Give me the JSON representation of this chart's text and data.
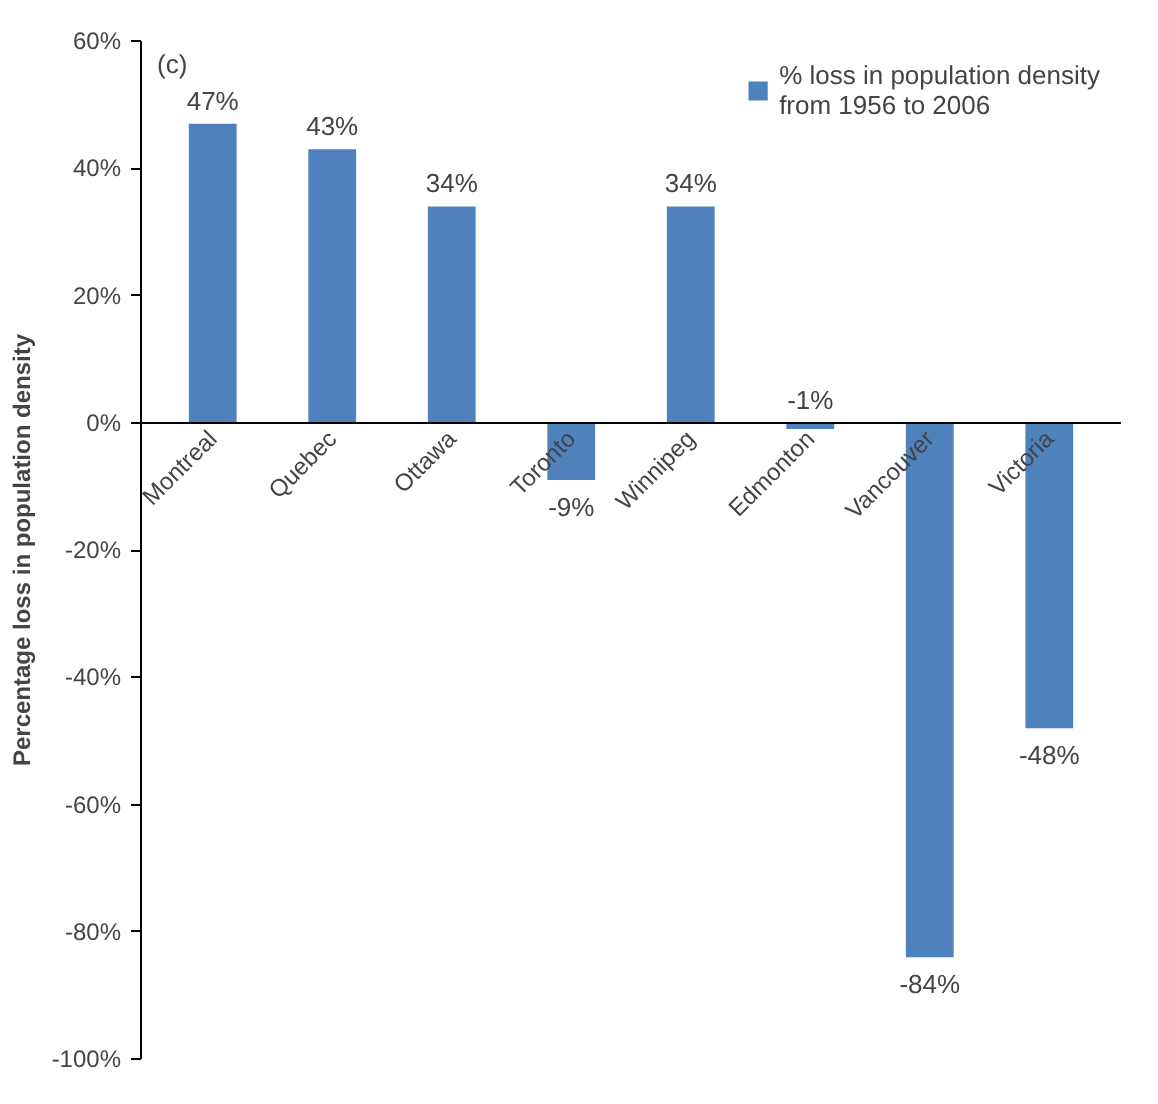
{
  "chart_data": {
    "type": "bar",
    "annotations": [
      "(c)"
    ],
    "ylabel": "Percentage loss in population density",
    "categories": [
      "Montreal",
      "Quebec",
      "Ottawa",
      "Toronto",
      "Winnipeg",
      "Edmonton",
      "Vancouver",
      "Victoria"
    ],
    "series": [
      {
        "name": "% loss in population density\nfrom 1956 to 2006",
        "color": "#4f81bd",
        "values": [
          47,
          43,
          34,
          -9,
          34,
          -1,
          -84,
          -48
        ],
        "value_labels": [
          "47%",
          "43%",
          "34%",
          "-9%",
          "34%",
          "-1%",
          "-84%",
          "-48%"
        ]
      }
    ],
    "ylim": [
      -100,
      60
    ],
    "yticks": [
      {
        "value": -100,
        "label": "-100%"
      },
      {
        "value": -80,
        "label": "-80%"
      },
      {
        "value": -60,
        "label": "-60%"
      },
      {
        "value": -40,
        "label": "-40%"
      },
      {
        "value": -20,
        "label": "-20%"
      },
      {
        "value": 0,
        "label": "0%"
      },
      {
        "value": 20,
        "label": "20%"
      },
      {
        "value": 40,
        "label": "40%"
      },
      {
        "value": 60,
        "label": "60%"
      }
    ],
    "legend": "top right",
    "grid": false
  }
}
